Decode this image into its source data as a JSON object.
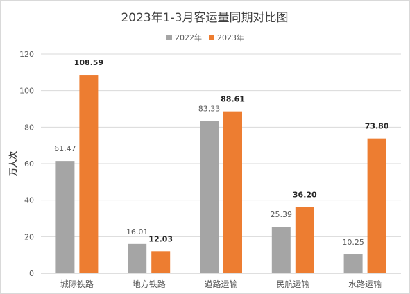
{
  "chart_data": {
    "type": "bar",
    "title": "2023年1-3月客运量同期对比图",
    "ylabel": "万人次",
    "xlabel": "",
    "ylim": [
      0,
      120
    ],
    "ytick_labels": [
      "0",
      "20",
      "40",
      "60",
      "80",
      "100",
      "120"
    ],
    "yticks": [
      0,
      20,
      40,
      60,
      80,
      100,
      120
    ],
    "categories": [
      "城际铁路",
      "地方铁路",
      "道路运输",
      "民航运输",
      "水路运输"
    ],
    "series": [
      {
        "name": "2022年",
        "color": "#a5a5a5",
        "values": [
          61.47,
          16.01,
          83.33,
          25.39,
          10.25
        ],
        "labels": [
          "61.47",
          "16.01",
          "83.33",
          "25.39",
          "10.25"
        ]
      },
      {
        "name": "2023年",
        "color": "#ed7d31",
        "values": [
          108.59,
          12.03,
          88.61,
          36.2,
          73.8
        ],
        "labels": [
          "108.59",
          "12.03",
          "88.61",
          "36.20",
          "73.80"
        ]
      }
    ],
    "legend_position": "top-center",
    "grid": true,
    "colors": {
      "grid": "#d9d9d9",
      "axis": "#bfbfbf",
      "text": "#595959",
      "title": "#404040"
    }
  }
}
